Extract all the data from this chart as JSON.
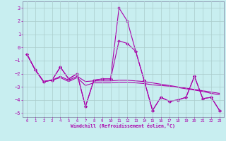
{
  "xlabel": "Windchill (Refroidissement éolien,°C)",
  "bg_color": "#c8eef0",
  "line_color": "#aa00aa",
  "grid_color": "#aacccc",
  "xlim": [
    -0.5,
    23.5
  ],
  "ylim": [
    -5.3,
    3.5
  ],
  "xticks": [
    0,
    1,
    2,
    3,
    4,
    5,
    6,
    7,
    8,
    9,
    10,
    11,
    12,
    13,
    14,
    15,
    16,
    17,
    18,
    19,
    20,
    21,
    22,
    23
  ],
  "yticks": [
    -5,
    -4,
    -3,
    -2,
    -1,
    0,
    1,
    2,
    3
  ],
  "line1_x": [
    0,
    1,
    2,
    3,
    4,
    5,
    6,
    7,
    8,
    9,
    10,
    11,
    12,
    13,
    14,
    15,
    16,
    17,
    18,
    19,
    20,
    21,
    22,
    23
  ],
  "line1_y": [
    -0.5,
    -1.7,
    -2.6,
    -2.5,
    -1.5,
    -2.4,
    -2.0,
    -4.5,
    -2.5,
    -2.4,
    -2.4,
    3.0,
    2.0,
    -0.3,
    -2.5,
    -4.8,
    -3.8,
    -4.1,
    -4.0,
    -3.8,
    -2.2,
    -3.9,
    -3.8,
    -4.8
  ],
  "line2_x": [
    0,
    1,
    2,
    3,
    4,
    5,
    6,
    7,
    8,
    9,
    10,
    11,
    12,
    13,
    14,
    15,
    16,
    17,
    18,
    19,
    20,
    21,
    22,
    23
  ],
  "line2_y": [
    -0.5,
    -1.7,
    -2.6,
    -2.5,
    -1.5,
    -2.4,
    -2.0,
    -4.5,
    -2.5,
    -2.4,
    -2.4,
    0.5,
    0.3,
    -0.3,
    -2.5,
    -4.8,
    -3.8,
    -4.1,
    -4.0,
    -3.8,
    -2.2,
    -3.9,
    -3.8,
    -4.8
  ],
  "line3_x": [
    0,
    1,
    2,
    3,
    4,
    5,
    6,
    7,
    8,
    9,
    10,
    11,
    12,
    13,
    14,
    15,
    16,
    17,
    18,
    19,
    20,
    21,
    22,
    23
  ],
  "line3_y": [
    -0.5,
    -1.7,
    -2.6,
    -2.5,
    -2.2,
    -2.5,
    -2.2,
    -2.6,
    -2.55,
    -2.55,
    -2.55,
    -2.5,
    -2.5,
    -2.55,
    -2.6,
    -2.7,
    -2.8,
    -2.9,
    -3.0,
    -3.1,
    -3.2,
    -3.3,
    -3.4,
    -3.5
  ],
  "line4_x": [
    0,
    1,
    2,
    3,
    4,
    5,
    6,
    7,
    8,
    9,
    10,
    11,
    12,
    13,
    14,
    15,
    16,
    17,
    18,
    19,
    20,
    21,
    22,
    23
  ],
  "line4_y": [
    -0.5,
    -1.7,
    -2.6,
    -2.5,
    -2.3,
    -2.6,
    -2.3,
    -2.9,
    -2.7,
    -2.7,
    -2.7,
    -2.65,
    -2.65,
    -2.7,
    -2.75,
    -2.85,
    -2.9,
    -2.95,
    -3.05,
    -3.15,
    -3.25,
    -3.35,
    -3.5,
    -3.6
  ]
}
